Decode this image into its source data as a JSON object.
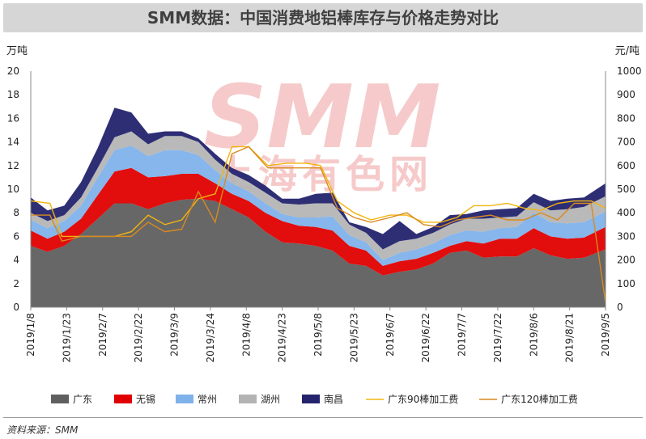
{
  "chart_data": {
    "type": "area",
    "title": "SMM数据：中国消费地铝棒库存与价格走势对比",
    "source": "资料来源：SMM",
    "watermark": {
      "logo": "SMM",
      "text": "上海有色网"
    },
    "y_left": {
      "unit": "万吨",
      "min": 0,
      "max": 20,
      "step": 2
    },
    "y_right": {
      "unit": "元/吨",
      "min": 0,
      "max": 1000,
      "step": 100
    },
    "x_tick_labels": [
      "2019/1/8",
      "2019/1/23",
      "2019/2/7",
      "2019/2/22",
      "2019/3/9",
      "2019/3/24",
      "2019/4/8",
      "2019/4/23",
      "2019/5/8",
      "2019/5/23",
      "2019/6/7",
      "2019/6/22",
      "2019/7/7",
      "2019/7/22",
      "2019/8/6",
      "2019/8/21",
      "2019/9/5"
    ],
    "x_range": [
      "2019/1/8",
      "2019/9/5"
    ],
    "stacked_series": [
      {
        "name": "广东",
        "color": "#5f5f5f",
        "points": [
          [
            "2019/1/8",
            5.2
          ],
          [
            "2019/1/15",
            4.7
          ],
          [
            "2019/1/22",
            5.2
          ],
          [
            "2019/1/29",
            6.2
          ],
          [
            "2019/2/5",
            7.5
          ],
          [
            "2019/2/12",
            8.8
          ],
          [
            "2019/2/19",
            8.8
          ],
          [
            "2019/2/26",
            8.3
          ],
          [
            "2019/3/5",
            8.8
          ],
          [
            "2019/3/12",
            9.1
          ],
          [
            "2019/3/19",
            9.2
          ],
          [
            "2019/3/26",
            9.0
          ],
          [
            "2019/4/2",
            8.3
          ],
          [
            "2019/4/9",
            7.6
          ],
          [
            "2019/4/16",
            6.4
          ],
          [
            "2019/4/23",
            5.5
          ],
          [
            "2019/4/30",
            5.4
          ],
          [
            "2019/5/7",
            5.2
          ],
          [
            "2019/5/14",
            4.8
          ],
          [
            "2019/5/21",
            3.7
          ],
          [
            "2019/5/28",
            3.5
          ],
          [
            "2019/6/4",
            2.7
          ],
          [
            "2019/6/11",
            3.0
          ],
          [
            "2019/6/18",
            3.2
          ],
          [
            "2019/6/25",
            3.7
          ],
          [
            "2019/7/2",
            4.6
          ],
          [
            "2019/7/9",
            4.8
          ],
          [
            "2019/7/16",
            4.2
          ],
          [
            "2019/7/23",
            4.3
          ],
          [
            "2019/7/30",
            4.3
          ],
          [
            "2019/8/6",
            5.0
          ],
          [
            "2019/8/13",
            4.4
          ],
          [
            "2019/8/20",
            4.1
          ],
          [
            "2019/8/27",
            4.2
          ],
          [
            "2019/9/5",
            4.9
          ]
        ]
      },
      {
        "name": "无锡",
        "color": "#e00000",
        "points": [
          [
            "2019/1/8",
            1.3
          ],
          [
            "2019/1/15",
            1.1
          ],
          [
            "2019/1/22",
            1.2
          ],
          [
            "2019/1/29",
            1.3
          ],
          [
            "2019/2/5",
            2.0
          ],
          [
            "2019/2/12",
            2.7
          ],
          [
            "2019/2/19",
            3.0
          ],
          [
            "2019/2/26",
            2.7
          ],
          [
            "2019/3/5",
            2.3
          ],
          [
            "2019/3/12",
            2.2
          ],
          [
            "2019/3/19",
            2.1
          ],
          [
            "2019/3/26",
            1.5
          ],
          [
            "2019/4/2",
            1.3
          ],
          [
            "2019/4/9",
            1.4
          ],
          [
            "2019/4/16",
            1.6
          ],
          [
            "2019/4/23",
            1.8
          ],
          [
            "2019/4/30",
            1.5
          ],
          [
            "2019/5/7",
            1.6
          ],
          [
            "2019/5/14",
            1.7
          ],
          [
            "2019/5/21",
            1.5
          ],
          [
            "2019/5/28",
            1.3
          ],
          [
            "2019/6/4",
            0.8
          ],
          [
            "2019/6/11",
            0.9
          ],
          [
            "2019/6/18",
            0.9
          ],
          [
            "2019/6/25",
            0.9
          ],
          [
            "2019/7/2",
            0.6
          ],
          [
            "2019/7/9",
            0.8
          ],
          [
            "2019/7/16",
            1.2
          ],
          [
            "2019/7/23",
            1.5
          ],
          [
            "2019/7/30",
            1.5
          ],
          [
            "2019/8/6",
            1.7
          ],
          [
            "2019/8/13",
            1.6
          ],
          [
            "2019/8/20",
            1.7
          ],
          [
            "2019/8/27",
            1.7
          ],
          [
            "2019/9/5",
            1.9
          ]
        ]
      },
      {
        "name": "常州",
        "color": "#7fb2ea",
        "points": [
          [
            "2019/1/8",
            0.9
          ],
          [
            "2019/1/15",
            0.9
          ],
          [
            "2019/1/22",
            0.9
          ],
          [
            "2019/1/29",
            1.1
          ],
          [
            "2019/2/5",
            1.5
          ],
          [
            "2019/2/12",
            1.8
          ],
          [
            "2019/2/19",
            1.9
          ],
          [
            "2019/2/26",
            1.8
          ],
          [
            "2019/3/5",
            2.2
          ],
          [
            "2019/3/12",
            2.0
          ],
          [
            "2019/3/19",
            1.6
          ],
          [
            "2019/3/26",
            1.1
          ],
          [
            "2019/4/2",
            0.9
          ],
          [
            "2019/4/9",
            0.8
          ],
          [
            "2019/4/16",
            0.8
          ],
          [
            "2019/4/23",
            0.6
          ],
          [
            "2019/4/30",
            0.7
          ],
          [
            "2019/5/7",
            0.8
          ],
          [
            "2019/5/14",
            1.2
          ],
          [
            "2019/5/21",
            0.9
          ],
          [
            "2019/5/28",
            0.7
          ],
          [
            "2019/6/4",
            0.5
          ],
          [
            "2019/6/11",
            0.7
          ],
          [
            "2019/6/18",
            0.8
          ],
          [
            "2019/6/25",
            0.8
          ],
          [
            "2019/7/2",
            0.9
          ],
          [
            "2019/7/9",
            0.9
          ],
          [
            "2019/7/16",
            1.0
          ],
          [
            "2019/7/23",
            0.9
          ],
          [
            "2019/7/30",
            1.0
          ],
          [
            "2019/8/6",
            1.3
          ],
          [
            "2019/8/13",
            1.2
          ],
          [
            "2019/8/20",
            1.3
          ],
          [
            "2019/8/27",
            1.3
          ],
          [
            "2019/9/5",
            1.3
          ]
        ]
      },
      {
        "name": "湖州",
        "color": "#b3b3b3",
        "points": [
          [
            "2019/1/8",
            0.6
          ],
          [
            "2019/1/15",
            0.6
          ],
          [
            "2019/1/22",
            0.5
          ],
          [
            "2019/1/29",
            0.7
          ],
          [
            "2019/2/5",
            0.8
          ],
          [
            "2019/2/12",
            1.1
          ],
          [
            "2019/2/19",
            1.2
          ],
          [
            "2019/2/26",
            1.0
          ],
          [
            "2019/3/5",
            1.2
          ],
          [
            "2019/3/12",
            1.2
          ],
          [
            "2019/3/19",
            1.1
          ],
          [
            "2019/3/26",
            0.9
          ],
          [
            "2019/4/2",
            0.8
          ],
          [
            "2019/4/9",
            0.8
          ],
          [
            "2019/4/16",
            0.9
          ],
          [
            "2019/4/23",
            0.9
          ],
          [
            "2019/4/30",
            1.1
          ],
          [
            "2019/5/7",
            1.2
          ],
          [
            "2019/5/14",
            1.1
          ],
          [
            "2019/5/21",
            0.9
          ],
          [
            "2019/5/28",
            0.8
          ],
          [
            "2019/6/4",
            0.9
          ],
          [
            "2019/6/11",
            1.0
          ],
          [
            "2019/6/18",
            0.9
          ],
          [
            "2019/6/25",
            0.9
          ],
          [
            "2019/7/2",
            0.9
          ],
          [
            "2019/7/9",
            1.0
          ],
          [
            "2019/7/16",
            1.1
          ],
          [
            "2019/7/23",
            0.9
          ],
          [
            "2019/7/30",
            0.9
          ],
          [
            "2019/8/6",
            0.9
          ],
          [
            "2019/8/13",
            1.0
          ],
          [
            "2019/8/20",
            1.2
          ],
          [
            "2019/8/27",
            1.3
          ],
          [
            "2019/9/5",
            1.3
          ]
        ]
      },
      {
        "name": "南昌",
        "color": "#23236e",
        "points": [
          [
            "2019/1/8",
            1.3
          ],
          [
            "2019/1/15",
            0.9
          ],
          [
            "2019/1/22",
            0.8
          ],
          [
            "2019/1/29",
            1.3
          ],
          [
            "2019/2/5",
            1.7
          ],
          [
            "2019/2/12",
            2.5
          ],
          [
            "2019/2/19",
            1.6
          ],
          [
            "2019/2/26",
            0.9
          ],
          [
            "2019/3/5",
            0.4
          ],
          [
            "2019/3/12",
            0.4
          ],
          [
            "2019/3/19",
            0.3
          ],
          [
            "2019/3/26",
            0.5
          ],
          [
            "2019/4/2",
            0.5
          ],
          [
            "2019/4/9",
            0.6
          ],
          [
            "2019/4/16",
            0.6
          ],
          [
            "2019/4/23",
            0.4
          ],
          [
            "2019/4/30",
            0.5
          ],
          [
            "2019/5/7",
            0.8
          ],
          [
            "2019/5/14",
            0.9
          ],
          [
            "2019/5/21",
            0.2
          ],
          [
            "2019/5/28",
            0.5
          ],
          [
            "2019/6/4",
            1.3
          ],
          [
            "2019/6/11",
            1.7
          ],
          [
            "2019/6/18",
            0.4
          ],
          [
            "2019/6/25",
            0.5
          ],
          [
            "2019/7/2",
            0.8
          ],
          [
            "2019/7/9",
            0.4
          ],
          [
            "2019/7/16",
            0.7
          ],
          [
            "2019/7/23",
            0.7
          ],
          [
            "2019/7/30",
            0.7
          ],
          [
            "2019/8/6",
            0.7
          ],
          [
            "2019/8/13",
            0.8
          ],
          [
            "2019/8/20",
            0.9
          ],
          [
            "2019/8/27",
            0.8
          ],
          [
            "2019/9/5",
            1.1
          ]
        ]
      }
    ],
    "line_series": [
      {
        "name": "广东90棒加工费",
        "color": "#f2b50f",
        "axis": "right",
        "points": [
          [
            "2019/1/8",
            450
          ],
          [
            "2019/1/16",
            440
          ],
          [
            "2019/1/21",
            300
          ],
          [
            "2019/1/29",
            300
          ],
          [
            "2019/2/12",
            300
          ],
          [
            "2019/2/19",
            320
          ],
          [
            "2019/2/26",
            390
          ],
          [
            "2019/3/5",
            350
          ],
          [
            "2019/3/12",
            370
          ],
          [
            "2019/3/19",
            460
          ],
          [
            "2019/3/26",
            480
          ],
          [
            "2019/4/2",
            680
          ],
          [
            "2019/4/9",
            680
          ],
          [
            "2019/4/17",
            600
          ],
          [
            "2019/4/25",
            610
          ],
          [
            "2019/5/3",
            610
          ],
          [
            "2019/5/9",
            600
          ],
          [
            "2019/5/16",
            450
          ],
          [
            "2019/5/23",
            400
          ],
          [
            "2019/5/30",
            370
          ],
          [
            "2019/6/7",
            390
          ],
          [
            "2019/6/14",
            390
          ],
          [
            "2019/6/21",
            360
          ],
          [
            "2019/6/28",
            360
          ],
          [
            "2019/7/5",
            380
          ],
          [
            "2019/7/12",
            430
          ],
          [
            "2019/7/19",
            430
          ],
          [
            "2019/7/26",
            440
          ],
          [
            "2019/8/2",
            420
          ],
          [
            "2019/8/9",
            410
          ],
          [
            "2019/8/16",
            440
          ],
          [
            "2019/8/23",
            450
          ],
          [
            "2019/8/30",
            450
          ],
          [
            "2019/9/5",
            420
          ]
        ]
      },
      {
        "name": "广东120棒加工费",
        "color": "#d98a1e",
        "axis": "right",
        "points": [
          [
            "2019/1/8",
            390
          ],
          [
            "2019/1/16",
            390
          ],
          [
            "2019/1/21",
            280
          ],
          [
            "2019/1/29",
            300
          ],
          [
            "2019/2/12",
            300
          ],
          [
            "2019/2/19",
            300
          ],
          [
            "2019/2/26",
            360
          ],
          [
            "2019/3/5",
            320
          ],
          [
            "2019/3/12",
            330
          ],
          [
            "2019/3/19",
            490
          ],
          [
            "2019/3/26",
            360
          ],
          [
            "2019/4/2",
            650
          ],
          [
            "2019/4/9",
            680
          ],
          [
            "2019/4/17",
            590
          ],
          [
            "2019/4/25",
            590
          ],
          [
            "2019/5/3",
            590
          ],
          [
            "2019/5/9",
            590
          ],
          [
            "2019/5/16",
            420
          ],
          [
            "2019/5/23",
            380
          ],
          [
            "2019/5/30",
            360
          ],
          [
            "2019/6/7",
            380
          ],
          [
            "2019/6/14",
            400
          ],
          [
            "2019/6/21",
            350
          ],
          [
            "2019/6/28",
            340
          ],
          [
            "2019/7/5",
            370
          ],
          [
            "2019/7/12",
            380
          ],
          [
            "2019/7/19",
            390
          ],
          [
            "2019/7/26",
            370
          ],
          [
            "2019/8/2",
            370
          ],
          [
            "2019/8/9",
            400
          ],
          [
            "2019/8/16",
            370
          ],
          [
            "2019/8/23",
            440
          ],
          [
            "2019/8/30",
            440
          ],
          [
            "2019/9/5",
            20
          ]
        ]
      }
    ]
  }
}
